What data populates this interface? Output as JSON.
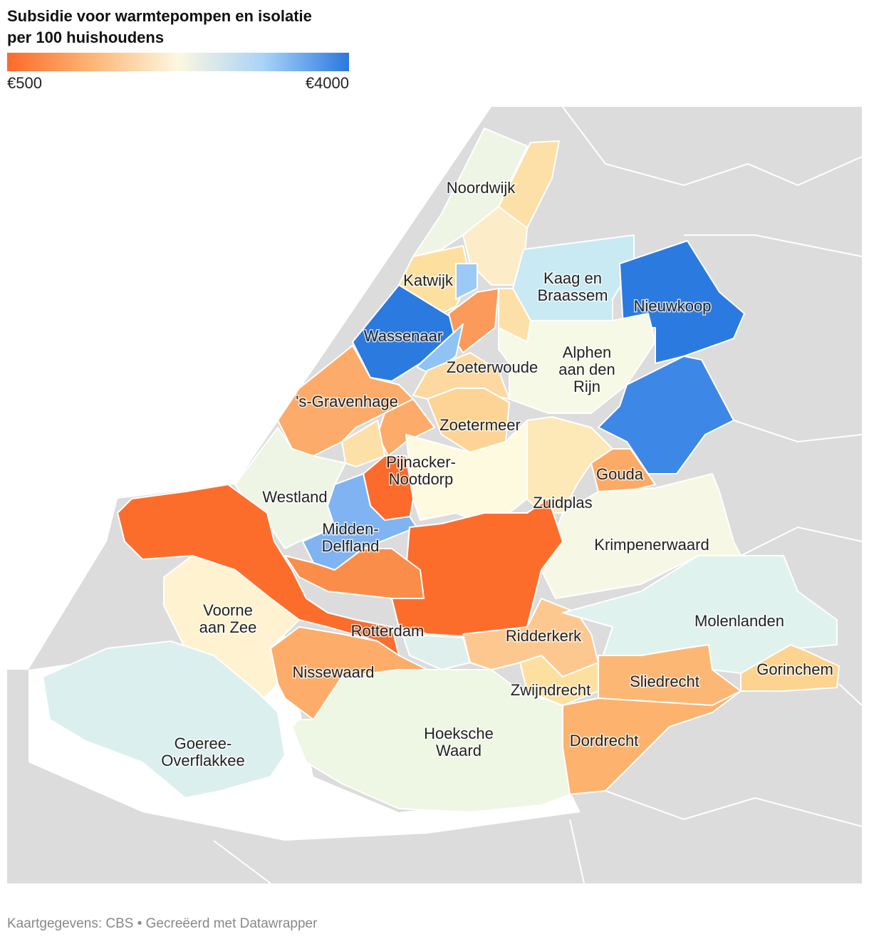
{
  "header": {
    "title_lines": [
      "Subsidie voor warmtepompen en isolatie",
      "per 100 huishoudens"
    ]
  },
  "legend": {
    "min_label": "€500",
    "max_label": "€4000"
  },
  "labels": [
    {
      "lines": [
        "Noordwijk"
      ]
    },
    {
      "lines": [
        "Katwijk"
      ]
    },
    {
      "lines": [
        "Kaag en",
        "Braassem"
      ]
    },
    {
      "lines": [
        "Nieuwkoop"
      ]
    },
    {
      "lines": [
        "Wassenaar"
      ]
    },
    {
      "lines": [
        "Zoeterwoude"
      ]
    },
    {
      "lines": [
        "Alphen",
        "aan den",
        "Rijn"
      ]
    },
    {
      "lines": [
        "'s-Gravenhage"
      ]
    },
    {
      "lines": [
        "Zoetermeer"
      ]
    },
    {
      "lines": [
        "Pijnacker-",
        "Nootdorp"
      ]
    },
    {
      "lines": [
        "Gouda"
      ]
    },
    {
      "lines": [
        "Westland"
      ]
    },
    {
      "lines": [
        "Zuidplas"
      ]
    },
    {
      "lines": [
        "Midden-",
        "Delfland"
      ]
    },
    {
      "lines": [
        "Krimpenerwaard"
      ]
    },
    {
      "lines": [
        "Molenlanden"
      ]
    },
    {
      "lines": [
        "Voorne",
        "aan Zee"
      ]
    },
    {
      "lines": [
        "Rotterdam"
      ]
    },
    {
      "lines": [
        "Ridderkerk"
      ]
    },
    {
      "lines": [
        "Nissewaard"
      ]
    },
    {
      "lines": [
        "Sliedrecht"
      ]
    },
    {
      "lines": [
        "Gorinchem"
      ]
    },
    {
      "lines": [
        "Zwijndrecht"
      ]
    },
    {
      "lines": [
        "Hoeksche",
        "Waard"
      ]
    },
    {
      "lines": [
        "Dordrecht"
      ]
    },
    {
      "lines": [
        "Goeree-",
        "Overflakkee"
      ]
    }
  ],
  "footer": "Kaartgegevens: CBS • Gecreëerd met Datawrapper"
}
